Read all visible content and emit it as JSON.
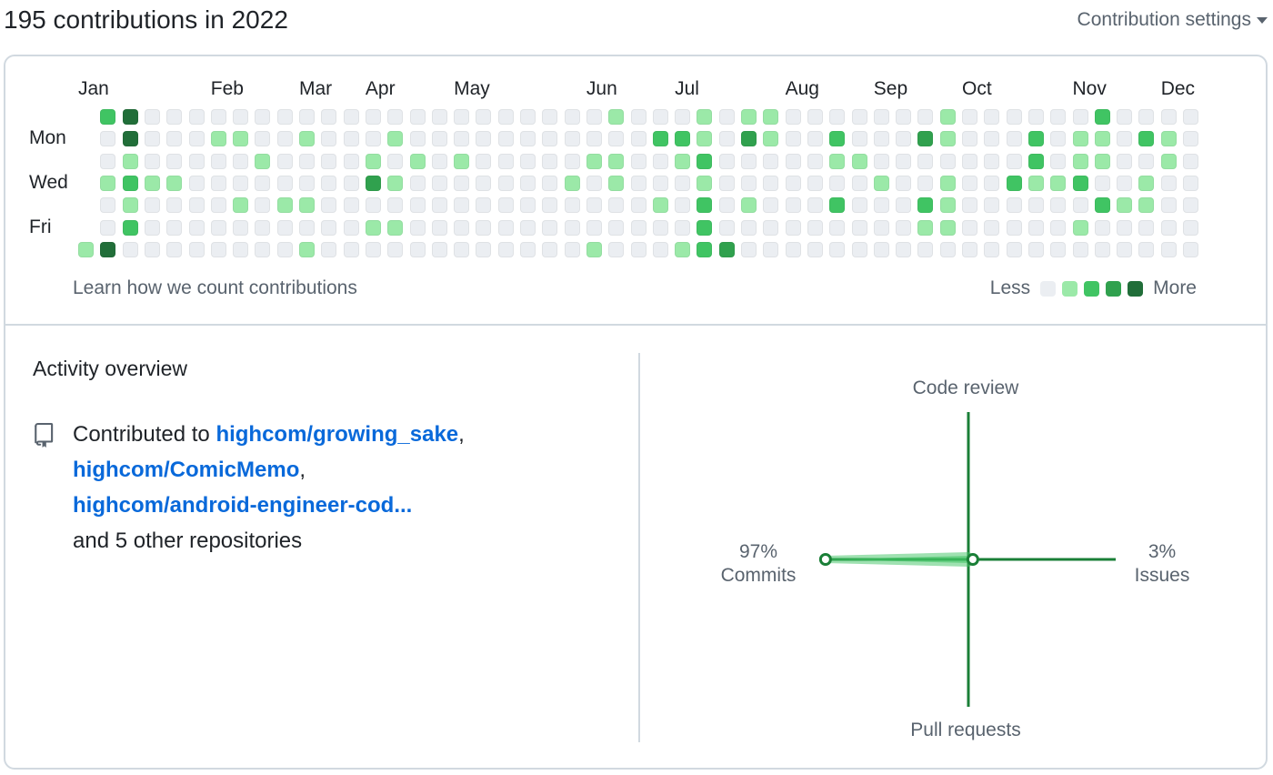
{
  "header": {
    "title": "195 contributions in 2022",
    "settings_label": "Contribution settings"
  },
  "calendar": {
    "months": [
      "Jan",
      "Feb",
      "Mar",
      "Apr",
      "May",
      "Jun",
      "Jul",
      "Aug",
      "Sep",
      "Oct",
      "Nov",
      "Dec"
    ],
    "day_labels": [
      "Mon",
      "Wed",
      "Fri"
    ],
    "colors": [
      "#ebeef2",
      "#9be9a8",
      "#40c463",
      "#30a14e",
      "#216e39"
    ],
    "weeks": [
      [
        -1,
        -1,
        -1,
        -1,
        -1,
        -1,
        1
      ],
      [
        2,
        0,
        0,
        1,
        0,
        0,
        4
      ],
      [
        4,
        4,
        1,
        2,
        1,
        2,
        0
      ],
      [
        0,
        0,
        0,
        1,
        0,
        0,
        0
      ],
      [
        0,
        0,
        0,
        1,
        0,
        0,
        0
      ],
      [
        0,
        0,
        0,
        0,
        0,
        0,
        0
      ],
      [
        0,
        1,
        0,
        0,
        0,
        0,
        0
      ],
      [
        0,
        1,
        0,
        0,
        1,
        0,
        0
      ],
      [
        0,
        0,
        1,
        0,
        0,
        0,
        0
      ],
      [
        0,
        0,
        0,
        0,
        1,
        0,
        0
      ],
      [
        0,
        1,
        0,
        0,
        1,
        0,
        1
      ],
      [
        0,
        0,
        0,
        0,
        0,
        0,
        0
      ],
      [
        0,
        0,
        0,
        0,
        0,
        0,
        0
      ],
      [
        0,
        0,
        1,
        3,
        0,
        1,
        0
      ],
      [
        0,
        1,
        0,
        1,
        0,
        1,
        0
      ],
      [
        0,
        0,
        1,
        0,
        0,
        0,
        0
      ],
      [
        0,
        0,
        0,
        0,
        0,
        0,
        0
      ],
      [
        0,
        0,
        1,
        0,
        0,
        0,
        0
      ],
      [
        0,
        0,
        0,
        0,
        0,
        0,
        0
      ],
      [
        0,
        0,
        0,
        0,
        0,
        0,
        0
      ],
      [
        0,
        0,
        0,
        0,
        0,
        0,
        0
      ],
      [
        0,
        0,
        0,
        0,
        0,
        0,
        0
      ],
      [
        0,
        0,
        0,
        1,
        0,
        0,
        0
      ],
      [
        0,
        0,
        1,
        0,
        0,
        0,
        1
      ],
      [
        1,
        0,
        1,
        1,
        0,
        0,
        0
      ],
      [
        0,
        0,
        0,
        0,
        0,
        0,
        0
      ],
      [
        0,
        2,
        0,
        0,
        1,
        0,
        0
      ],
      [
        0,
        2,
        1,
        0,
        0,
        0,
        1
      ],
      [
        1,
        1,
        2,
        1,
        2,
        2,
        2
      ],
      [
        0,
        0,
        0,
        0,
        0,
        0,
        3
      ],
      [
        1,
        3,
        0,
        0,
        1,
        0,
        0
      ],
      [
        1,
        1,
        0,
        0,
        0,
        0,
        0
      ],
      [
        0,
        0,
        0,
        0,
        0,
        0,
        0
      ],
      [
        0,
        0,
        0,
        0,
        0,
        0,
        0
      ],
      [
        0,
        2,
        1,
        0,
        2,
        0,
        0
      ],
      [
        0,
        0,
        1,
        0,
        0,
        0,
        0
      ],
      [
        0,
        0,
        0,
        1,
        0,
        0,
        0
      ],
      [
        0,
        0,
        0,
        0,
        0,
        0,
        0
      ],
      [
        0,
        3,
        0,
        0,
        2,
        1,
        0
      ],
      [
        1,
        1,
        0,
        1,
        1,
        1,
        0
      ],
      [
        0,
        0,
        0,
        0,
        0,
        0,
        0
      ],
      [
        0,
        0,
        0,
        0,
        0,
        0,
        0
      ],
      [
        0,
        0,
        0,
        2,
        0,
        0,
        0
      ],
      [
        0,
        2,
        2,
        1,
        0,
        0,
        0
      ],
      [
        0,
        0,
        0,
        1,
        0,
        0,
        0
      ],
      [
        0,
        1,
        1,
        2,
        0,
        1,
        0
      ],
      [
        2,
        1,
        1,
        0,
        2,
        0,
        0
      ],
      [
        0,
        0,
        0,
        0,
        1,
        0,
        0
      ],
      [
        0,
        2,
        0,
        1,
        1,
        0,
        0
      ],
      [
        0,
        1,
        1,
        0,
        0,
        0,
        0
      ],
      [
        0,
        0,
        0,
        0,
        0,
        0,
        0
      ]
    ],
    "learn_link": "Learn how we count contributions",
    "legend_less": "Less",
    "legend_more": "More"
  },
  "activity": {
    "title": "Activity overview",
    "contributed_prefix": "Contributed to ",
    "repos": [
      "highcom/growing_sake",
      "highcom/ComicMemo",
      "highcom/android-engineer-cod..."
    ],
    "separator": ",",
    "others": "and 5 other repositories",
    "repo_icon": "repo-icon"
  },
  "radar": {
    "top_label": "Code review",
    "bottom_label": "Pull requests",
    "left_pct": "97%",
    "left_label": "Commits",
    "right_pct": "3%",
    "right_label": "Issues",
    "commits_value": 97,
    "issues_value": 3,
    "code_review_value": 0,
    "pull_requests_value": 0,
    "color_line": "#1a7f37",
    "color_fill": "#40c463"
  }
}
